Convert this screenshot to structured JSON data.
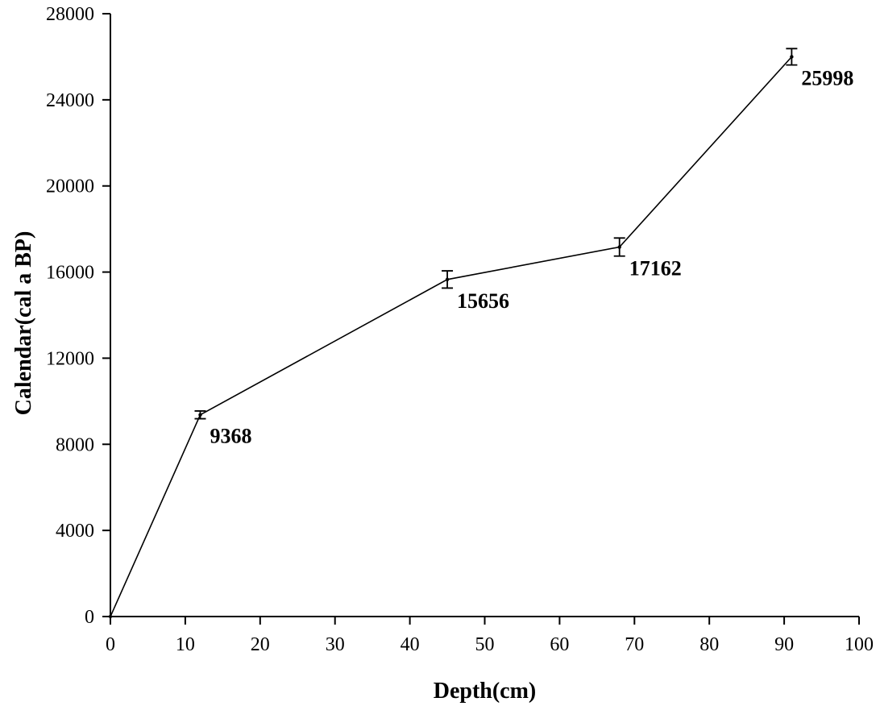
{
  "chart_data": {
    "type": "line",
    "title": "",
    "xlabel": "Depth(cm)",
    "ylabel": "Calendar(cal a BP)",
    "xlim": [
      0,
      100
    ],
    "ylim": [
      0,
      28000
    ],
    "x_ticks": [
      0,
      10,
      20,
      30,
      40,
      50,
      60,
      70,
      80,
      90,
      100
    ],
    "y_ticks": [
      0,
      4000,
      8000,
      12000,
      16000,
      20000,
      24000,
      28000
    ],
    "grid": false,
    "series": [
      {
        "points": [
          {
            "x": 0,
            "y": 0,
            "err": 0,
            "label": ""
          },
          {
            "x": 12,
            "y": 9368,
            "err": 180,
            "label": "9368"
          },
          {
            "x": 45,
            "y": 15656,
            "err": 400,
            "label": "15656"
          },
          {
            "x": 68,
            "y": 17162,
            "err": 420,
            "label": "17162"
          },
          {
            "x": 91,
            "y": 25998,
            "err": 380,
            "label": "25998"
          }
        ]
      }
    ]
  }
}
